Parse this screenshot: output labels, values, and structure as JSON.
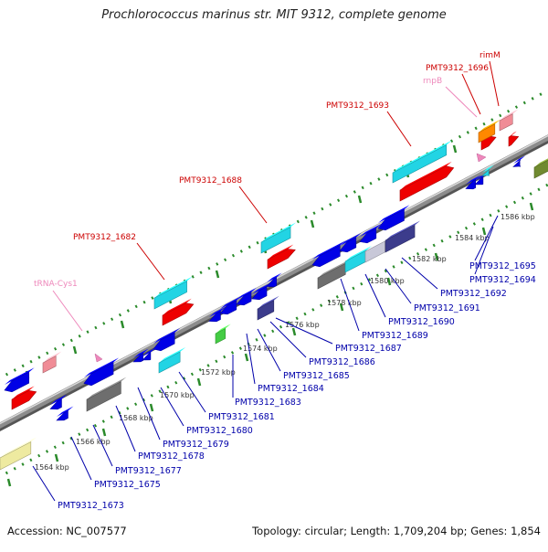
{
  "title": "Prochlorococcus marinus str. MIT 9312, complete genome",
  "footer": {
    "accession": "Accession: NC_007577",
    "summary": "Topology: circular; Length: 1,709,204 bp; Genes: 1,854"
  },
  "colors": {
    "backbone": "#8c8c8c",
    "scale_ticks": "#2a8a2a",
    "forward_label": "#cc0000",
    "reverse_label": "#0000aa",
    "rna_label": "#ee88bb",
    "blue": "#0000e6",
    "red": "#ee0000",
    "cyan": "#22d4e4",
    "slate": "#3c3c8c",
    "gray": "#6e6e6e",
    "pink": "#f08c96",
    "orange": "#ff8800",
    "green": "#44cc44",
    "khaki": "#eeeaa0",
    "olive": "#708a30"
  },
  "scale_labels": [
    {
      "kbp": 1564,
      "text": "1564 kbp"
    },
    {
      "kbp": 1566,
      "text": "1566 kbp"
    },
    {
      "kbp": 1568,
      "text": "1568 kbp"
    },
    {
      "kbp": 1570,
      "text": "1570 kbp"
    },
    {
      "kbp": 1572,
      "text": "1572 kbp"
    },
    {
      "kbp": 1574,
      "text": "1574 kbp"
    },
    {
      "kbp": 1576,
      "text": "1576 kbp"
    },
    {
      "kbp": 1578,
      "text": "1578 kbp"
    },
    {
      "kbp": 1580,
      "text": "1580 kbp"
    },
    {
      "kbp": 1582,
      "text": "1582 kbp"
    },
    {
      "kbp": 1584,
      "text": "1584 kbp"
    },
    {
      "kbp": 1586,
      "text": "1586 kbp"
    }
  ],
  "forward_genes": [
    {
      "text": "tRNA-Cys1",
      "kind": "rna"
    },
    {
      "text": "PMT9312_1682",
      "kind": "cds"
    },
    {
      "text": "PMT9312_1688",
      "kind": "cds"
    },
    {
      "text": "PMT9312_1693",
      "kind": "cds"
    },
    {
      "text": "rnpB",
      "kind": "rna"
    },
    {
      "text": "PMT9312_1696",
      "kind": "cds"
    },
    {
      "text": "rimM",
      "kind": "cds"
    }
  ],
  "reverse_genes": [
    {
      "text": "PMT9312_1673"
    },
    {
      "text": "PMT9312_1675"
    },
    {
      "text": "PMT9312_1677"
    },
    {
      "text": "PMT9312_1678"
    },
    {
      "text": "PMT9312_1679"
    },
    {
      "text": "PMT9312_1680"
    },
    {
      "text": "PMT9312_1681"
    },
    {
      "text": "PMT9312_1683"
    },
    {
      "text": "PMT9312_1684"
    },
    {
      "text": "PMT9312_1685"
    },
    {
      "text": "PMT9312_1686"
    },
    {
      "text": "PMT9312_1687"
    },
    {
      "text": "PMT9312_1689"
    },
    {
      "text": "PMT9312_1690"
    },
    {
      "text": "PMT9312_1691"
    },
    {
      "text": "PMT9312_1692"
    },
    {
      "text": "PMT9312_1694"
    },
    {
      "text": "PMT9312_1695"
    }
  ]
}
